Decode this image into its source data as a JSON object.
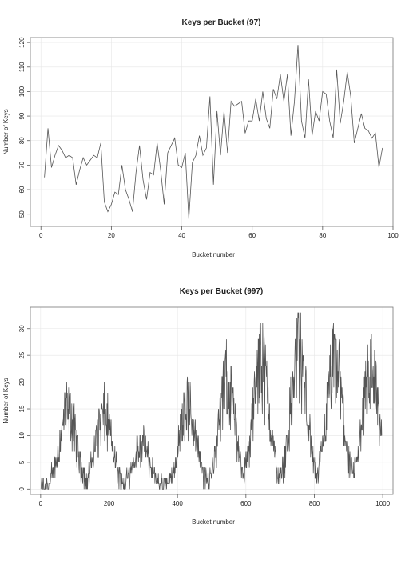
{
  "chart_data": [
    {
      "type": "line",
      "title": "Keys per Bucket (97)",
      "xlabel": "Bucket number",
      "ylabel": "Number of Keys",
      "xlim": [
        -3,
        100
      ],
      "ylim": [
        45,
        122
      ],
      "xticks": [
        0,
        20,
        40,
        60,
        80,
        100
      ],
      "yticks": [
        50,
        60,
        70,
        80,
        90,
        100,
        110,
        120
      ],
      "grid": true,
      "series": [
        {
          "x": [
            1,
            2,
            3,
            4,
            5,
            6,
            7,
            8,
            9,
            10,
            11,
            12,
            13,
            14,
            15,
            16,
            17,
            18,
            19,
            20,
            21,
            22,
            23,
            24,
            25,
            26,
            27,
            28,
            29,
            30,
            31,
            32,
            33,
            34,
            35,
            36,
            37,
            38,
            39,
            40,
            41,
            42,
            43,
            44,
            45,
            46,
            47,
            48,
            49,
            50,
            51,
            52,
            53,
            54,
            55,
            56,
            57,
            58,
            59,
            60,
            61,
            62,
            63,
            64,
            65,
            66,
            67,
            68,
            69,
            70,
            71,
            72,
            73,
            74,
            75,
            76,
            77,
            78,
            79,
            80,
            81,
            82,
            83,
            84,
            85,
            86,
            87,
            88,
            89,
            90,
            91,
            92,
            93,
            94,
            95,
            96,
            97
          ],
          "values": [
            65,
            85,
            69,
            74,
            78,
            76,
            73,
            74,
            73,
            62,
            68,
            73,
            70,
            72,
            74,
            73,
            79,
            55,
            51,
            54,
            59,
            58,
            70,
            60,
            56,
            51,
            67,
            78,
            64,
            56,
            67,
            66,
            79,
            68,
            54,
            75,
            78,
            81,
            70,
            69,
            75,
            48,
            71,
            74,
            82,
            74,
            77,
            98,
            62,
            92,
            74,
            92,
            75,
            96,
            94,
            95,
            96,
            83,
            88,
            88,
            97,
            88,
            100,
            89,
            85,
            101,
            97,
            107,
            96,
            107,
            82,
            96,
            119,
            88,
            81,
            105,
            82,
            92,
            88,
            100,
            99,
            88,
            81,
            109,
            87,
            96,
            108,
            98,
            79,
            85,
            91,
            85,
            84,
            81,
            83,
            69,
            77
          ]
        }
      ]
    },
    {
      "type": "line",
      "title": "Keys per Bucket (997)",
      "xlabel": "Bucket number",
      "ylabel": "Number of Keys",
      "xlim": [
        -30,
        1030
      ],
      "ylim": [
        -1,
        34
      ],
      "xticks": [
        0,
        200,
        400,
        600,
        800,
        1000
      ],
      "yticks": [
        0,
        5,
        10,
        15,
        20,
        25,
        30
      ],
      "grid": true,
      "series": [
        {
          "description_of_values": "",
          "x_start": 1,
          "x_end": 997,
          "peaks": [
            {
              "center": 80,
              "height": 19
            },
            {
              "center": 185,
              "height": 18
            },
            {
              "center": 295,
              "height": 10
            },
            {
              "center": 430,
              "height": 20
            },
            {
              "center": 545,
              "height": 26
            },
            {
              "center": 645,
              "height": 31
            },
            {
              "center": 755,
              "height": 33
            },
            {
              "center": 860,
              "height": 31
            },
            {
              "center": 965,
              "height": 29
            }
          ]
        }
      ]
    }
  ]
}
